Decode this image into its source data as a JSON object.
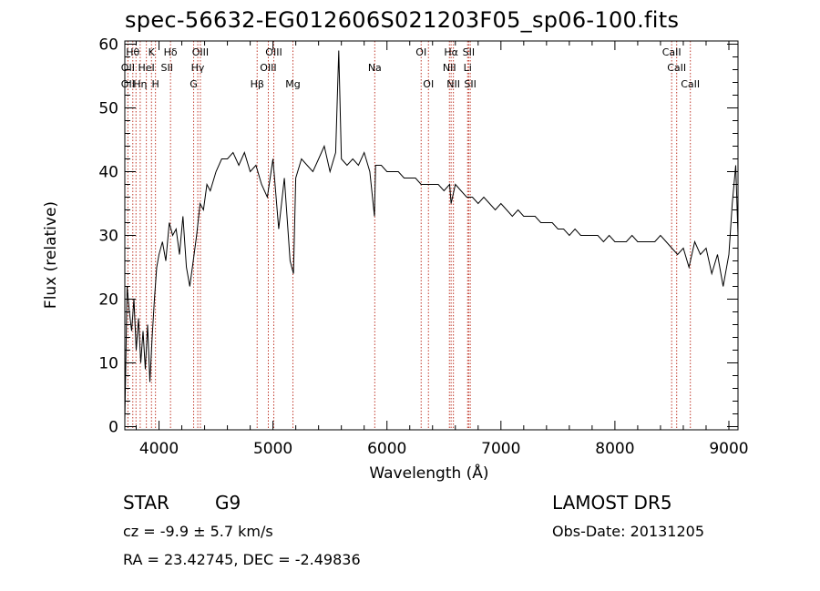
{
  "chart_data": {
    "type": "line",
    "title": "spec-56632-EG012606S021203F05_sp06-100.fits",
    "xlabel": "Wavelength (Å)",
    "ylabel": "Flux (relative)",
    "xlim": [
      3700,
      9080
    ],
    "ylim": [
      -0.5,
      60.5
    ],
    "xticks": [
      4000,
      5000,
      6000,
      7000,
      8000,
      9000
    ],
    "yticks": [
      0,
      10,
      20,
      30,
      40,
      50,
      60
    ],
    "grid": false,
    "legend": "none",
    "line_color": "#000000",
    "marker_color": "#c0392b",
    "series": [
      {
        "x": [
          3700,
          3720,
          3740,
          3760,
          3780,
          3800,
          3820,
          3840,
          3860,
          3880,
          3900,
          3920,
          3940,
          3960,
          3980,
          4000,
          4030,
          4060,
          4090,
          4120,
          4150,
          4180,
          4210,
          4240,
          4270,
          4300,
          4330,
          4360,
          4390,
          4420,
          4450,
          4500,
          4550,
          4600,
          4650,
          4700,
          4750,
          4800,
          4850,
          4900,
          4950,
          5000,
          5050,
          5100,
          5150,
          5180,
          5200,
          5250,
          5300,
          5350,
          5400,
          5450,
          5500,
          5550,
          5577,
          5600,
          5650,
          5700,
          5750,
          5800,
          5850,
          5890,
          5900,
          5950,
          6000,
          6050,
          6100,
          6150,
          6200,
          6250,
          6300,
          6350,
          6400,
          6450,
          6500,
          6550,
          6563,
          6600,
          6650,
          6700,
          6750,
          6800,
          6850,
          6900,
          6950,
          7000,
          7050,
          7100,
          7150,
          7200,
          7250,
          7300,
          7350,
          7400,
          7450,
          7500,
          7550,
          7600,
          7650,
          7700,
          7750,
          7800,
          7850,
          7900,
          7950,
          8000,
          8050,
          8100,
          8150,
          8200,
          8250,
          8300,
          8350,
          8400,
          8450,
          8500,
          8550,
          8600,
          8650,
          8700,
          8750,
          8800,
          8850,
          8900,
          8950,
          9000,
          9030,
          9060,
          9080
        ],
        "y": [
          1,
          22,
          18,
          15,
          20,
          12,
          17,
          10,
          15,
          9,
          16,
          7,
          14,
          20,
          25,
          27,
          29,
          26,
          32,
          30,
          31,
          27,
          33,
          25,
          22,
          26,
          30,
          35,
          34,
          38,
          37,
          40,
          42,
          42,
          43,
          41,
          43,
          40,
          41,
          38,
          36,
          42,
          31,
          39,
          26,
          24,
          39,
          42,
          41,
          40,
          42,
          44,
          40,
          43,
          59,
          42,
          41,
          42,
          41,
          43,
          40,
          33,
          41,
          41,
          40,
          40,
          40,
          39,
          39,
          39,
          38,
          38,
          38,
          38,
          37,
          38,
          35,
          38,
          37,
          36,
          36,
          35,
          36,
          35,
          34,
          35,
          34,
          33,
          34,
          33,
          33,
          33,
          32,
          32,
          32,
          31,
          31,
          30,
          31,
          30,
          30,
          30,
          30,
          29,
          30,
          29,
          29,
          29,
          30,
          29,
          29,
          29,
          29,
          30,
          29,
          28,
          27,
          28,
          25,
          29,
          27,
          28,
          24,
          27,
          22,
          27,
          35,
          41,
          30
        ]
      }
    ],
    "line_markers": {
      "wavelengths": [
        3727,
        3770,
        3798,
        3835,
        3889,
        3934,
        3969,
        4101,
        4304,
        4340,
        4363,
        4861,
        4959,
        5007,
        5175,
        5893,
        6300,
        6364,
        6548,
        6563,
        6583,
        6708,
        6717,
        6731,
        8498,
        8542,
        8662
      ],
      "labels": [
        {
          "text": "Hθ",
          "x": 3770,
          "row": 1
        },
        {
          "text": "K",
          "x": 3934,
          "row": 1
        },
        {
          "text": "Hδ",
          "x": 4101,
          "row": 1
        },
        {
          "text": "OIII",
          "x": 4363,
          "row": 1
        },
        {
          "text": "OIII",
          "x": 5007,
          "row": 1
        },
        {
          "text": "OI",
          "x": 6300,
          "row": 1
        },
        {
          "text": "Hα",
          "x": 6563,
          "row": 1
        },
        {
          "text": "SII",
          "x": 6717,
          "row": 1
        },
        {
          "text": "CaII",
          "x": 8498,
          "row": 1
        },
        {
          "text": "OII",
          "x": 3727,
          "row": 2
        },
        {
          "text": "HeI",
          "x": 3889,
          "row": 2
        },
        {
          "text": "SII",
          "x": 4070,
          "row": 2
        },
        {
          "text": "Hγ",
          "x": 4340,
          "row": 2
        },
        {
          "text": "OIII",
          "x": 4959,
          "row": 2
        },
        {
          "text": "Na",
          "x": 5893,
          "row": 2
        },
        {
          "text": "NII",
          "x": 6548,
          "row": 2
        },
        {
          "text": "Li",
          "x": 6708,
          "row": 2
        },
        {
          "text": "CaII",
          "x": 8542,
          "row": 2
        },
        {
          "text": "OII",
          "x": 3727,
          "row": 3
        },
        {
          "text": "Hη",
          "x": 3835,
          "row": 3
        },
        {
          "text": "H",
          "x": 3969,
          "row": 3
        },
        {
          "text": "G",
          "x": 4304,
          "row": 3
        },
        {
          "text": "Hβ",
          "x": 4861,
          "row": 3
        },
        {
          "text": "Mg",
          "x": 5175,
          "row": 3
        },
        {
          "text": "OI",
          "x": 6364,
          "row": 3
        },
        {
          "text": "NII",
          "x": 6583,
          "row": 3
        },
        {
          "text": "SII",
          "x": 6731,
          "row": 3
        },
        {
          "text": "CaII",
          "x": 8662,
          "row": 3
        }
      ]
    }
  },
  "info": {
    "object_class": "STAR",
    "subclass": "G9",
    "cz_line": "cz = -9.9 ± 5.7 km/s",
    "radec_line": "RA =  23.42745, DEC =  -2.49836",
    "survey": "LAMOST DR5",
    "obs_date_line": "Obs-Date: 20131205"
  }
}
